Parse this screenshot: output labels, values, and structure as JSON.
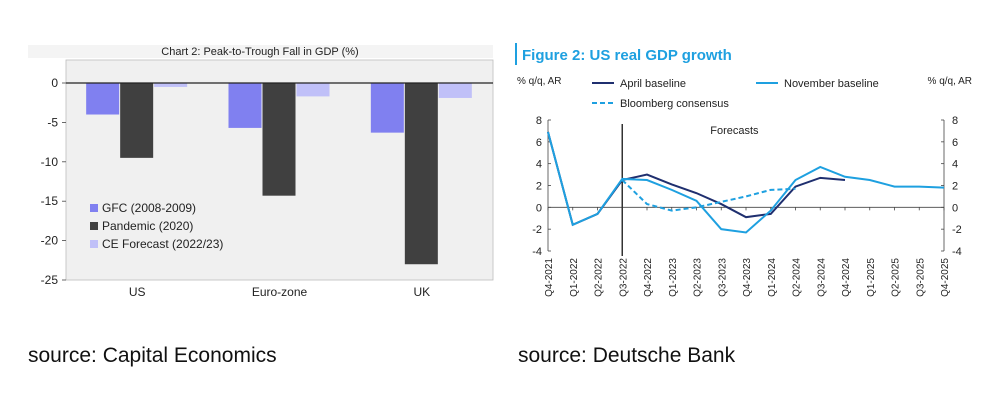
{
  "captions": {
    "left": "source: Capital Economics",
    "right": "source: Deutsche Bank"
  },
  "chart_data": [
    {
      "type": "bar",
      "title": "Chart 2: Peak-to-Trough Fall in GDP (%)",
      "categories": [
        "US",
        "Euro-zone",
        "UK"
      ],
      "series": [
        {
          "name": "GFC (2008-2009)",
          "values": [
            -4.0,
            -5.7,
            -6.3
          ],
          "color": "#8080f0"
        },
        {
          "name": "Pandemic (2020)",
          "values": [
            -9.5,
            -14.3,
            -23.0
          ],
          "color": "#404040"
        },
        {
          "name": "CE Forecast (2022/23)",
          "values": [
            -0.5,
            -1.7,
            -1.9
          ],
          "color": "#c0c0f8"
        }
      ],
      "ylim": [
        -25,
        0
      ],
      "yticks": [
        0,
        -5,
        -10,
        -15,
        -20,
        -25
      ],
      "ytick_labels": [
        "0",
        "-5",
        "-10",
        "-15",
        "-20",
        "-25"
      ],
      "legend_position": "bottom-left",
      "grid": false,
      "background": "#f2f2f2"
    },
    {
      "type": "line",
      "title": "Figure 2: US real GDP growth",
      "ylabel_left": "% q/q, AR",
      "ylabel_right": "% q/q, AR",
      "x": [
        "Q4-2021",
        "Q1-2022",
        "Q2-2022",
        "Q3-2022",
        "Q4-2022",
        "Q1-2023",
        "Q2-2023",
        "Q3-2023",
        "Q4-2023",
        "Q1-2024",
        "Q2-2024",
        "Q3-2024",
        "Q4-2024",
        "Q1-2025",
        "Q2-2025",
        "Q3-2025",
        "Q4-2025"
      ],
      "series": [
        {
          "name": "April baseline",
          "color": "#1f2f6f",
          "dash": "solid",
          "values": [
            6.9,
            -1.6,
            -0.6,
            2.5,
            3.0,
            2.1,
            1.3,
            0.3,
            -0.9,
            -0.6,
            1.9,
            2.7,
            2.5,
            null,
            null,
            null,
            null
          ]
        },
        {
          "name": "November baseline",
          "color": "#1ea0e0",
          "dash": "solid",
          "values": [
            6.9,
            -1.6,
            -0.6,
            2.6,
            2.5,
            1.6,
            0.6,
            -2.0,
            -2.3,
            -0.3,
            2.5,
            3.7,
            2.8,
            2.5,
            1.9,
            1.9,
            1.8
          ]
        },
        {
          "name": "Bloomberg consensus",
          "color": "#1ea0e0",
          "dash": "dashed",
          "values": [
            null,
            null,
            null,
            2.5,
            0.3,
            -0.3,
            0.0,
            0.5,
            1.0,
            1.6,
            1.7,
            null,
            null,
            null,
            null,
            null,
            null
          ]
        }
      ],
      "ylim": [
        -4,
        8
      ],
      "yticks": [
        -4,
        -2,
        0,
        2,
        4,
        6,
        8
      ],
      "ytick_labels": [
        "-4",
        "-2",
        "0",
        "2",
        "4",
        "6",
        "8"
      ],
      "annotation": "Forecasts",
      "forecast_start": "Q3-2022",
      "legend_position": "top",
      "grid": false
    }
  ]
}
